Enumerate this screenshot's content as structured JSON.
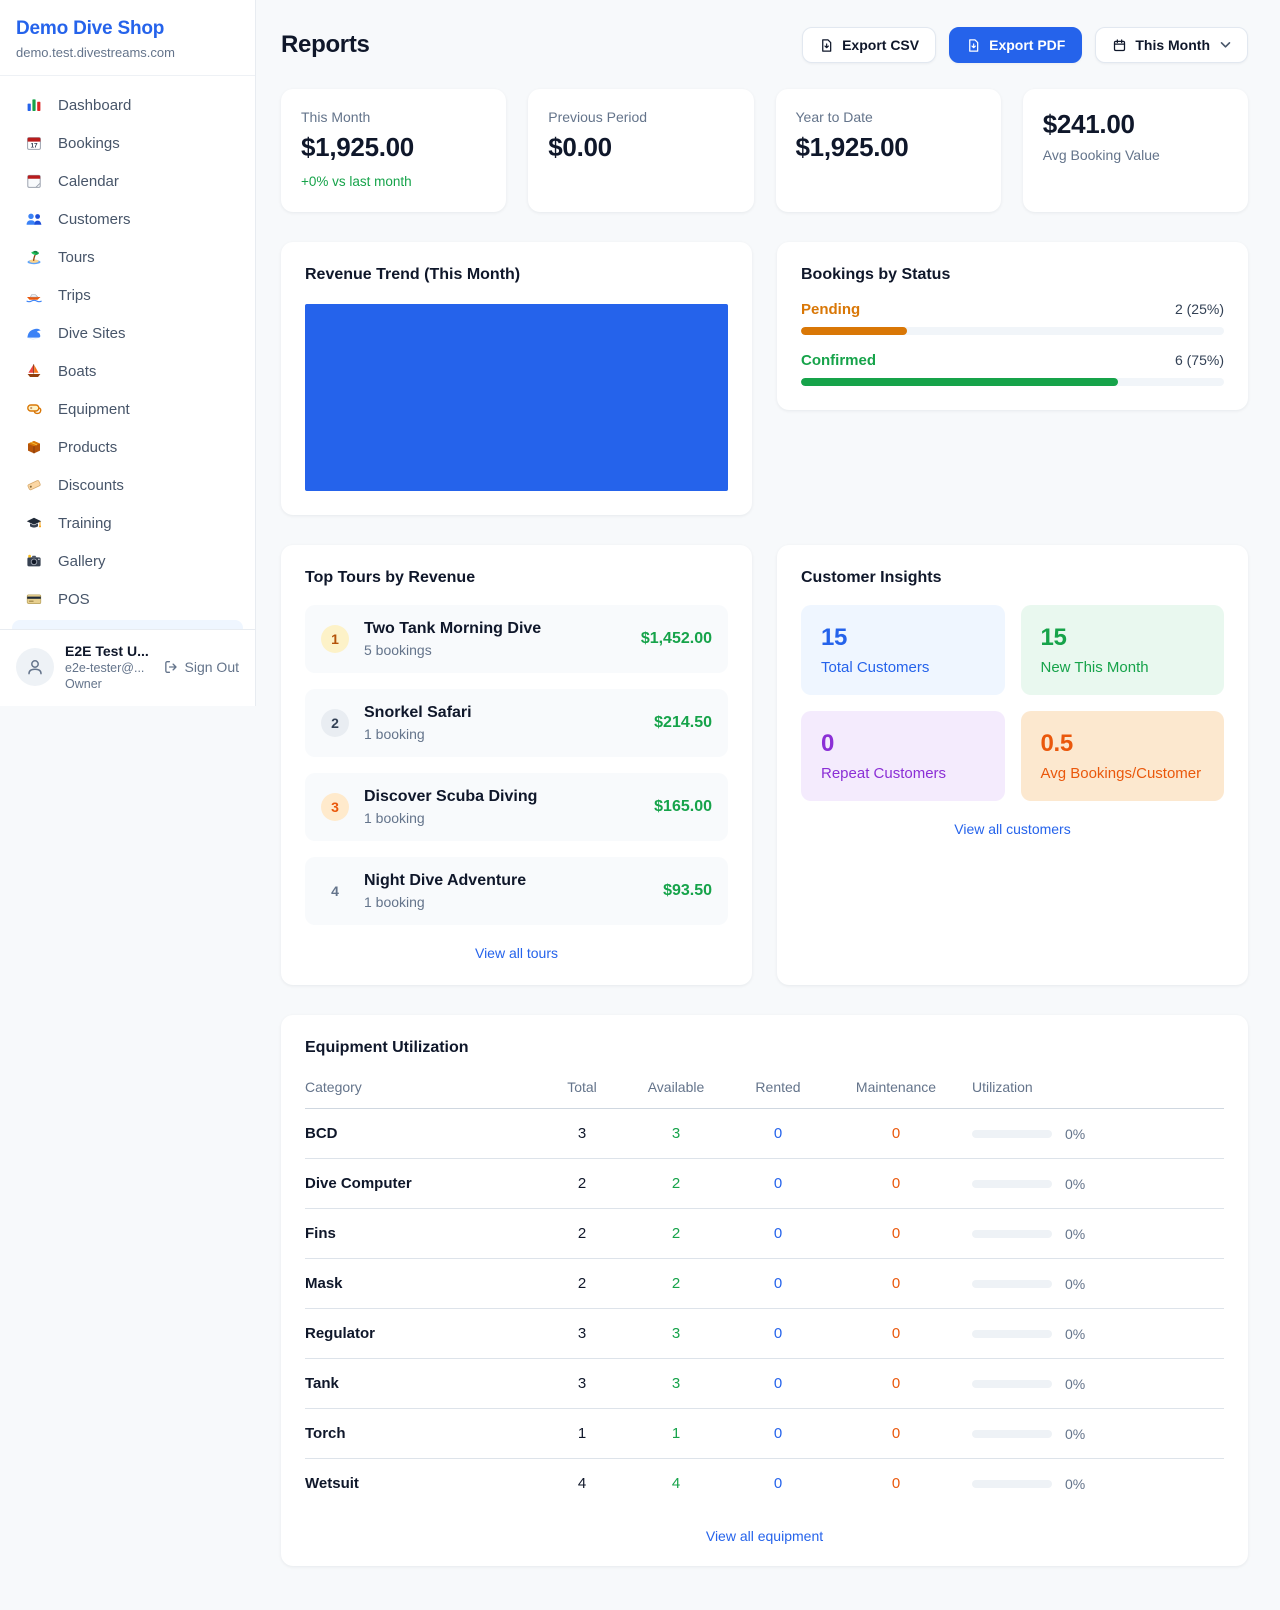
{
  "colors": {
    "accent": "#2563eb",
    "green": "#16a34a",
    "orange": "#d97706",
    "maintenance_orange": "#ea580c",
    "chart_bar": "#2563eb"
  },
  "sidebar": {
    "shop_name": "Demo Dive Shop",
    "shop_domain": "demo.test.divestreams.com",
    "items": [
      {
        "icon": "dashboard-icon",
        "label": "Dashboard"
      },
      {
        "icon": "bookings-icon",
        "label": "Bookings"
      },
      {
        "icon": "calendar-icon",
        "label": "Calendar"
      },
      {
        "icon": "customers-icon",
        "label": "Customers"
      },
      {
        "icon": "tours-icon",
        "label": "Tours"
      },
      {
        "icon": "trips-icon",
        "label": "Trips"
      },
      {
        "icon": "dive-sites-icon",
        "label": "Dive Sites"
      },
      {
        "icon": "boats-icon",
        "label": "Boats"
      },
      {
        "icon": "equipment-icon",
        "label": "Equipment"
      },
      {
        "icon": "products-icon",
        "label": "Products"
      },
      {
        "icon": "discounts-icon",
        "label": "Discounts"
      },
      {
        "icon": "training-icon",
        "label": "Training"
      },
      {
        "icon": "gallery-icon",
        "label": "Gallery"
      },
      {
        "icon": "pos-icon",
        "label": "POS"
      }
    ],
    "user": {
      "name": "E2E Test U...",
      "email": "e2e-tester@...",
      "role": "Owner",
      "sign_out_label": "Sign Out"
    }
  },
  "header": {
    "title": "Reports",
    "export_csv_label": "Export CSV",
    "export_pdf_label": "Export PDF",
    "period_label": "This Month"
  },
  "stats": [
    {
      "label": "This Month",
      "value": "$1,925.00",
      "delta": "+0% vs last month"
    },
    {
      "label": "Previous Period",
      "value": "$0.00"
    },
    {
      "label": "Year to Date",
      "value": "$1,925.00"
    },
    {
      "value": "$241.00",
      "label": "Avg Booking Value"
    }
  ],
  "revenue_trend": {
    "title": "Revenue Trend (This Month)"
  },
  "chart_data": [
    {
      "type": "bar",
      "title": "Revenue Trend (This Month)",
      "categories": [
        "This Month"
      ],
      "values": [
        1925
      ],
      "color": "#2563eb",
      "note": "single full-width solid blue bar filling the plot area; no axes, ticks or labels visible"
    },
    {
      "type": "bar",
      "title": "Bookings by Status",
      "categories": [
        "Pending",
        "Confirmed"
      ],
      "values": [
        2,
        6
      ],
      "percent": [
        25,
        75
      ],
      "colors": [
        "#d97706",
        "#16a34a"
      ]
    }
  ],
  "bookings_by_status": {
    "title": "Bookings by Status",
    "rows": [
      {
        "label": "Pending",
        "count_label": "2 (25%)",
        "percent": 25
      },
      {
        "label": "Confirmed",
        "count_label": "6 (75%)",
        "percent": 75
      }
    ]
  },
  "top_tours": {
    "title": "Top Tours by Revenue",
    "rows": [
      {
        "rank": "1",
        "name": "Two Tank Morning Dive",
        "sub": "5 bookings",
        "amount": "$1,452.00"
      },
      {
        "rank": "2",
        "name": "Snorkel Safari",
        "sub": "1 booking",
        "amount": "$214.50"
      },
      {
        "rank": "3",
        "name": "Discover Scuba Diving",
        "sub": "1 booking",
        "amount": "$165.00"
      },
      {
        "rank": "4",
        "name": "Night Dive Adventure",
        "sub": "1 booking",
        "amount": "$93.50"
      }
    ],
    "view_all": "View all tours"
  },
  "customer_insights": {
    "title": "Customer Insights",
    "tiles": [
      {
        "value": "15",
        "label": "Total Customers"
      },
      {
        "value": "15",
        "label": "New This Month"
      },
      {
        "value": "0",
        "label": "Repeat Customers"
      },
      {
        "value": "0.5",
        "label": "Avg Bookings/Customer"
      }
    ],
    "view_all": "View all customers"
  },
  "equipment": {
    "title": "Equipment Utilization",
    "columns": [
      "Category",
      "Total",
      "Available",
      "Rented",
      "Maintenance",
      "Utilization"
    ],
    "rows": [
      {
        "category": "BCD",
        "total": "3",
        "available": "3",
        "rented": "0",
        "maintenance": "0",
        "utilization": "0%",
        "utilization_percent": 0
      },
      {
        "category": "Dive Computer",
        "total": "2",
        "available": "2",
        "rented": "0",
        "maintenance": "0",
        "utilization": "0%",
        "utilization_percent": 0
      },
      {
        "category": "Fins",
        "total": "2",
        "available": "2",
        "rented": "0",
        "maintenance": "0",
        "utilization": "0%",
        "utilization_percent": 0
      },
      {
        "category": "Mask",
        "total": "2",
        "available": "2",
        "rented": "0",
        "maintenance": "0",
        "utilization": "0%",
        "utilization_percent": 0
      },
      {
        "category": "Regulator",
        "total": "3",
        "available": "3",
        "rented": "0",
        "maintenance": "0",
        "utilization": "0%",
        "utilization_percent": 0
      },
      {
        "category": "Tank",
        "total": "3",
        "available": "3",
        "rented": "0",
        "maintenance": "0",
        "utilization": "0%",
        "utilization_percent": 0
      },
      {
        "category": "Torch",
        "total": "1",
        "available": "1",
        "rented": "0",
        "maintenance": "0",
        "utilization": "0%",
        "utilization_percent": 0
      },
      {
        "category": "Wetsuit",
        "total": "4",
        "available": "4",
        "rented": "0",
        "maintenance": "0",
        "utilization": "0%",
        "utilization_percent": 0
      }
    ],
    "view_all": "View all equipment"
  }
}
